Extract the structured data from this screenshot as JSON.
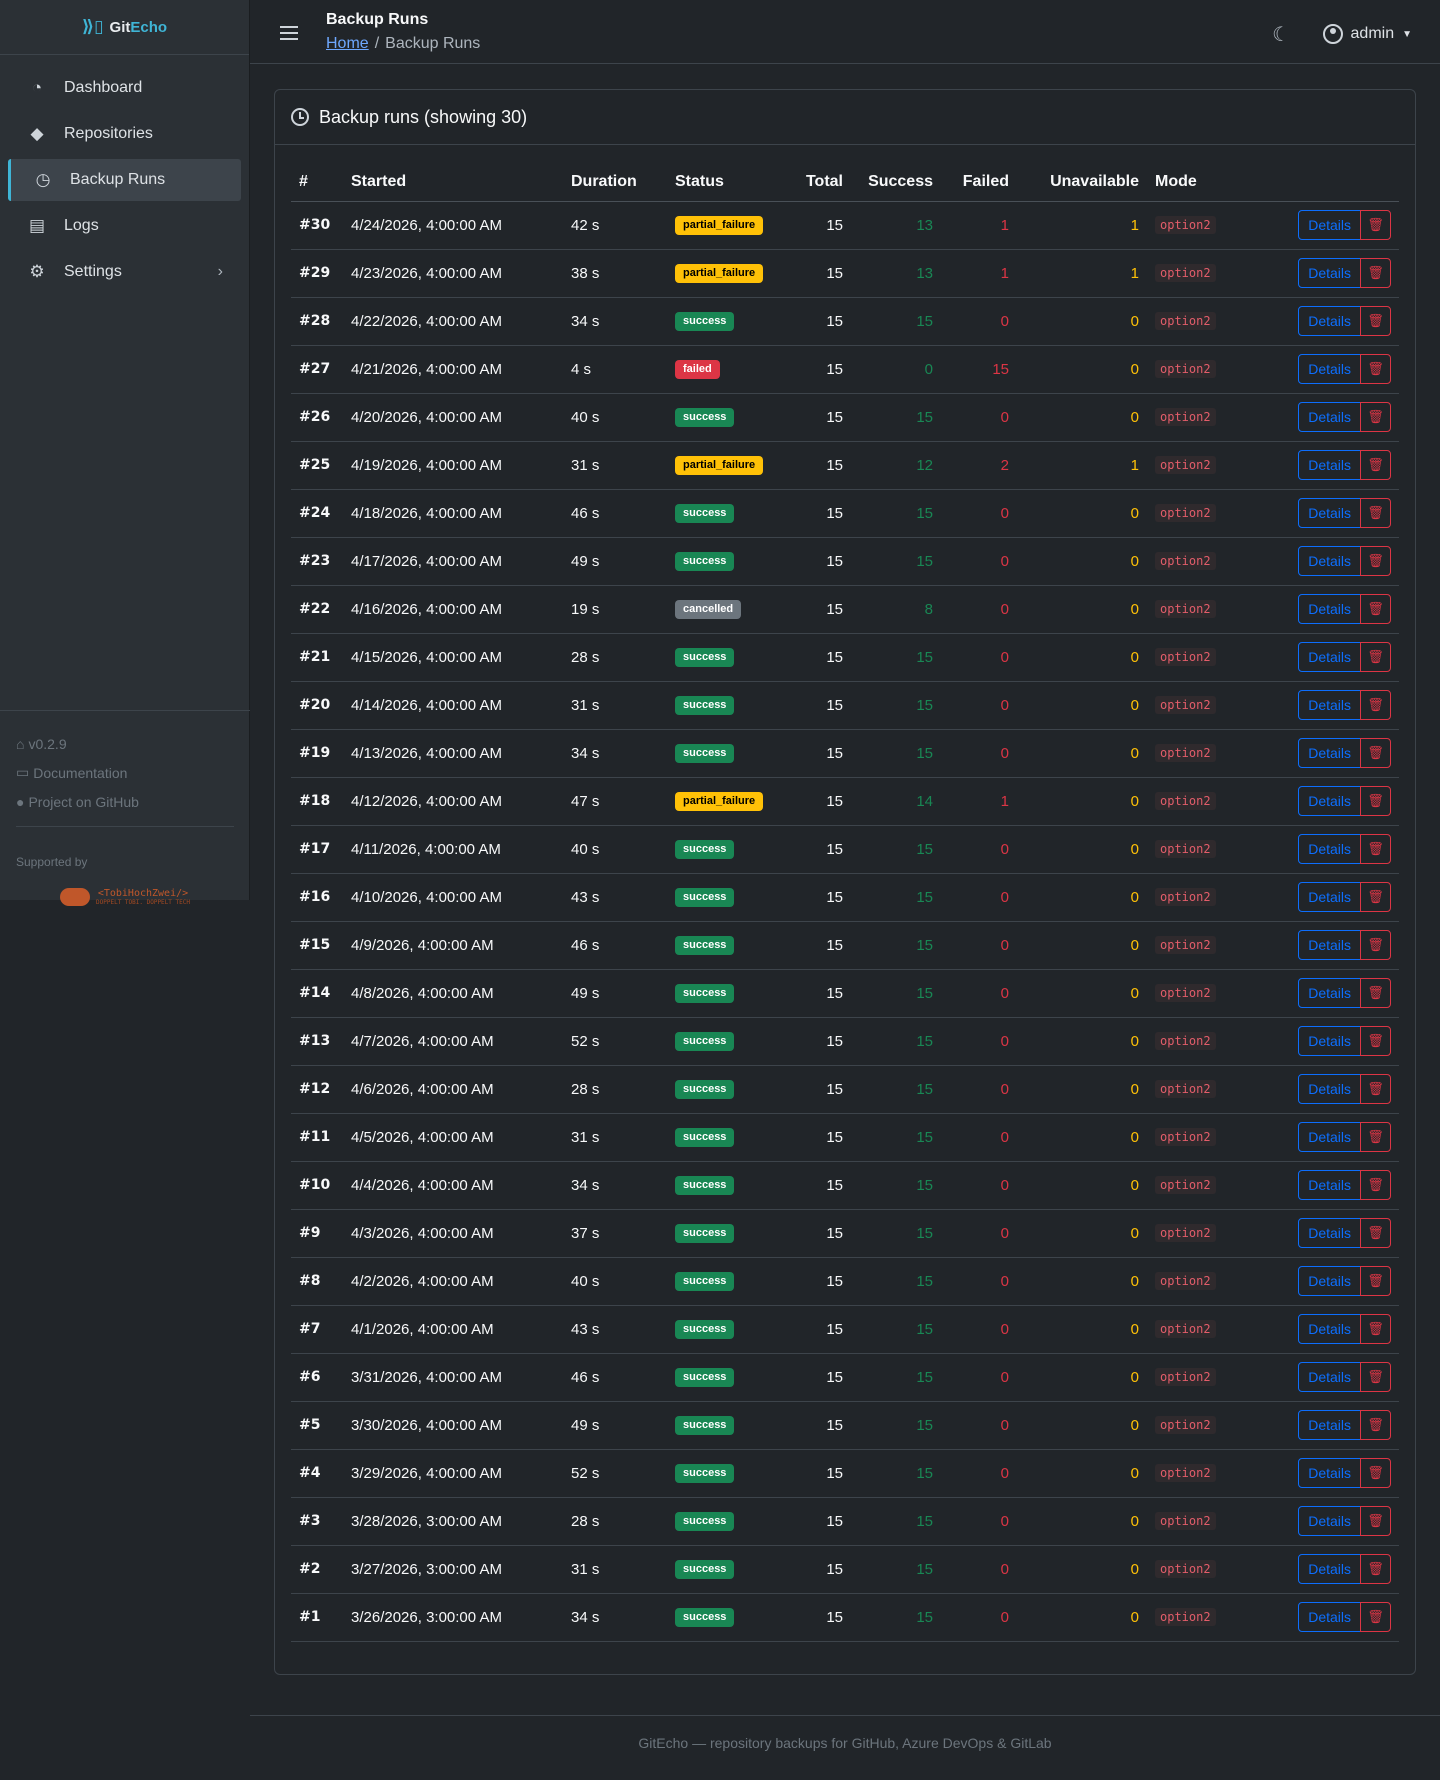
{
  "brand": {
    "git": "Git",
    "echo": "Echo"
  },
  "sidebar": {
    "items": [
      {
        "label": "Dashboard",
        "icon": "gauge-icon"
      },
      {
        "label": "Repositories",
        "icon": "git-diamond-icon"
      },
      {
        "label": "Backup Runs",
        "icon": "clock-icon",
        "active": true
      },
      {
        "label": "Logs",
        "icon": "document-icon"
      },
      {
        "label": "Settings",
        "icon": "gear-icon",
        "has_chevron": true
      }
    ],
    "version": "v0.2.9",
    "documentation": "Documentation",
    "github": "Project on GitHub",
    "supported_by": "Supported by",
    "sponsor": "<TobiHochZwei/>",
    "sponsor_tagline": "DOPPELT TOBI. DOPPELT TECH"
  },
  "header": {
    "title": "Backup Runs",
    "breadcrumb_home": "Home",
    "breadcrumb_sep": "/",
    "breadcrumb_current": "Backup Runs",
    "user": "admin"
  },
  "card": {
    "title": "Backup runs (showing 30)"
  },
  "table": {
    "headers": {
      "id": "#",
      "started": "Started",
      "duration": "Duration",
      "status": "Status",
      "total": "Total",
      "success": "Success",
      "failed": "Failed",
      "unavailable": "Unavailable",
      "mode": "Mode"
    },
    "details_label": "Details",
    "rows": [
      {
        "id": "#30",
        "started": "4/24/2026, 4:00:00 AM",
        "duration": "42 s",
        "status": "partial_failure",
        "total": "15",
        "success": "13",
        "failed": "1",
        "unavailable": "1",
        "mode": "option2"
      },
      {
        "id": "#29",
        "started": "4/23/2026, 4:00:00 AM",
        "duration": "38 s",
        "status": "partial_failure",
        "total": "15",
        "success": "13",
        "failed": "1",
        "unavailable": "1",
        "mode": "option2"
      },
      {
        "id": "#28",
        "started": "4/22/2026, 4:00:00 AM",
        "duration": "34 s",
        "status": "success",
        "total": "15",
        "success": "15",
        "failed": "0",
        "unavailable": "0",
        "mode": "option2"
      },
      {
        "id": "#27",
        "started": "4/21/2026, 4:00:00 AM",
        "duration": "4 s",
        "status": "failed",
        "total": "15",
        "success": "0",
        "failed": "15",
        "unavailable": "0",
        "mode": "option2"
      },
      {
        "id": "#26",
        "started": "4/20/2026, 4:00:00 AM",
        "duration": "40 s",
        "status": "success",
        "total": "15",
        "success": "15",
        "failed": "0",
        "unavailable": "0",
        "mode": "option2"
      },
      {
        "id": "#25",
        "started": "4/19/2026, 4:00:00 AM",
        "duration": "31 s",
        "status": "partial_failure",
        "total": "15",
        "success": "12",
        "failed": "2",
        "unavailable": "1",
        "mode": "option2"
      },
      {
        "id": "#24",
        "started": "4/18/2026, 4:00:00 AM",
        "duration": "46 s",
        "status": "success",
        "total": "15",
        "success": "15",
        "failed": "0",
        "unavailable": "0",
        "mode": "option2"
      },
      {
        "id": "#23",
        "started": "4/17/2026, 4:00:00 AM",
        "duration": "49 s",
        "status": "success",
        "total": "15",
        "success": "15",
        "failed": "0",
        "unavailable": "0",
        "mode": "option2"
      },
      {
        "id": "#22",
        "started": "4/16/2026, 4:00:00 AM",
        "duration": "19 s",
        "status": "cancelled",
        "total": "15",
        "success": "8",
        "failed": "0",
        "unavailable": "0",
        "mode": "option2"
      },
      {
        "id": "#21",
        "started": "4/15/2026, 4:00:00 AM",
        "duration": "28 s",
        "status": "success",
        "total": "15",
        "success": "15",
        "failed": "0",
        "unavailable": "0",
        "mode": "option2"
      },
      {
        "id": "#20",
        "started": "4/14/2026, 4:00:00 AM",
        "duration": "31 s",
        "status": "success",
        "total": "15",
        "success": "15",
        "failed": "0",
        "unavailable": "0",
        "mode": "option2"
      },
      {
        "id": "#19",
        "started": "4/13/2026, 4:00:00 AM",
        "duration": "34 s",
        "status": "success",
        "total": "15",
        "success": "15",
        "failed": "0",
        "unavailable": "0",
        "mode": "option2"
      },
      {
        "id": "#18",
        "started": "4/12/2026, 4:00:00 AM",
        "duration": "47 s",
        "status": "partial_failure",
        "total": "15",
        "success": "14",
        "failed": "1",
        "unavailable": "0",
        "mode": "option2"
      },
      {
        "id": "#17",
        "started": "4/11/2026, 4:00:00 AM",
        "duration": "40 s",
        "status": "success",
        "total": "15",
        "success": "15",
        "failed": "0",
        "unavailable": "0",
        "mode": "option2"
      },
      {
        "id": "#16",
        "started": "4/10/2026, 4:00:00 AM",
        "duration": "43 s",
        "status": "success",
        "total": "15",
        "success": "15",
        "failed": "0",
        "unavailable": "0",
        "mode": "option2"
      },
      {
        "id": "#15",
        "started": "4/9/2026, 4:00:00 AM",
        "duration": "46 s",
        "status": "success",
        "total": "15",
        "success": "15",
        "failed": "0",
        "unavailable": "0",
        "mode": "option2"
      },
      {
        "id": "#14",
        "started": "4/8/2026, 4:00:00 AM",
        "duration": "49 s",
        "status": "success",
        "total": "15",
        "success": "15",
        "failed": "0",
        "unavailable": "0",
        "mode": "option2"
      },
      {
        "id": "#13",
        "started": "4/7/2026, 4:00:00 AM",
        "duration": "52 s",
        "status": "success",
        "total": "15",
        "success": "15",
        "failed": "0",
        "unavailable": "0",
        "mode": "option2"
      },
      {
        "id": "#12",
        "started": "4/6/2026, 4:00:00 AM",
        "duration": "28 s",
        "status": "success",
        "total": "15",
        "success": "15",
        "failed": "0",
        "unavailable": "0",
        "mode": "option2"
      },
      {
        "id": "#11",
        "started": "4/5/2026, 4:00:00 AM",
        "duration": "31 s",
        "status": "success",
        "total": "15",
        "success": "15",
        "failed": "0",
        "unavailable": "0",
        "mode": "option2"
      },
      {
        "id": "#10",
        "started": "4/4/2026, 4:00:00 AM",
        "duration": "34 s",
        "status": "success",
        "total": "15",
        "success": "15",
        "failed": "0",
        "unavailable": "0",
        "mode": "option2"
      },
      {
        "id": "#9",
        "started": "4/3/2026, 4:00:00 AM",
        "duration": "37 s",
        "status": "success",
        "total": "15",
        "success": "15",
        "failed": "0",
        "unavailable": "0",
        "mode": "option2"
      },
      {
        "id": "#8",
        "started": "4/2/2026, 4:00:00 AM",
        "duration": "40 s",
        "status": "success",
        "total": "15",
        "success": "15",
        "failed": "0",
        "unavailable": "0",
        "mode": "option2"
      },
      {
        "id": "#7",
        "started": "4/1/2026, 4:00:00 AM",
        "duration": "43 s",
        "status": "success",
        "total": "15",
        "success": "15",
        "failed": "0",
        "unavailable": "0",
        "mode": "option2"
      },
      {
        "id": "#6",
        "started": "3/31/2026, 4:00:00 AM",
        "duration": "46 s",
        "status": "success",
        "total": "15",
        "success": "15",
        "failed": "0",
        "unavailable": "0",
        "mode": "option2"
      },
      {
        "id": "#5",
        "started": "3/30/2026, 4:00:00 AM",
        "duration": "49 s",
        "status": "success",
        "total": "15",
        "success": "15",
        "failed": "0",
        "unavailable": "0",
        "mode": "option2"
      },
      {
        "id": "#4",
        "started": "3/29/2026, 4:00:00 AM",
        "duration": "52 s",
        "status": "success",
        "total": "15",
        "success": "15",
        "failed": "0",
        "unavailable": "0",
        "mode": "option2"
      },
      {
        "id": "#3",
        "started": "3/28/2026, 3:00:00 AM",
        "duration": "28 s",
        "status": "success",
        "total": "15",
        "success": "15",
        "failed": "0",
        "unavailable": "0",
        "mode": "option2"
      },
      {
        "id": "#2",
        "started": "3/27/2026, 3:00:00 AM",
        "duration": "31 s",
        "status": "success",
        "total": "15",
        "success": "15",
        "failed": "0",
        "unavailable": "0",
        "mode": "option2"
      },
      {
        "id": "#1",
        "started": "3/26/2026, 3:00:00 AM",
        "duration": "34 s",
        "status": "success",
        "total": "15",
        "success": "15",
        "failed": "0",
        "unavailable": "0",
        "mode": "option2"
      }
    ]
  },
  "footer": {
    "text": "GitEcho — repository backups for GitHub, Azure DevOps & GitLab"
  },
  "colors": {
    "accent": "#3fb5d6",
    "primary": "#0d6efd",
    "success": "#198754",
    "danger": "#dc3545",
    "warning": "#ffc107"
  }
}
